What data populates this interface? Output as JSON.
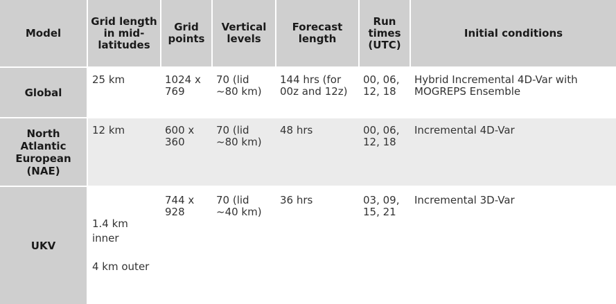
{
  "headers": [
    "Model",
    "Grid length in mid-latitudes",
    "Grid points",
    "Vertical levels",
    "Forecast length",
    "Run times (UTC)",
    "Initial conditions"
  ],
  "rows": [
    {
      "model": "Global",
      "grid_length": "25 km",
      "grid_points": "1024 x 769",
      "vertical_levels": "70 (lid ~80 km)",
      "forecast_length": "144 hrs (for 00z and 12z)",
      "run_times": "00, 06, 12, 18",
      "initial_conditions": "Hybrid Incremental 4D-Var with MOGREPS Ensemble"
    },
    {
      "model": "North Atlantic European (NAE)",
      "grid_length": "12 km",
      "grid_points": "600 x 360",
      "vertical_levels": "70 (lid ~80 km)",
      "forecast_length": "48 hrs",
      "run_times": "00, 06, 12, 18",
      "initial_conditions": "Incremental 4D-Var"
    },
    {
      "model": "UKV",
      "grid_length_inner": "1.4 km inner",
      "grid_length_outer": "4 km outer",
      "grid_points": "744 x 928",
      "vertical_levels": "70 (lid ~40 km)",
      "forecast_length": "36 hrs",
      "run_times": "03, 09, 15, 21",
      "initial_conditions": "Incremental 3D-Var"
    }
  ]
}
